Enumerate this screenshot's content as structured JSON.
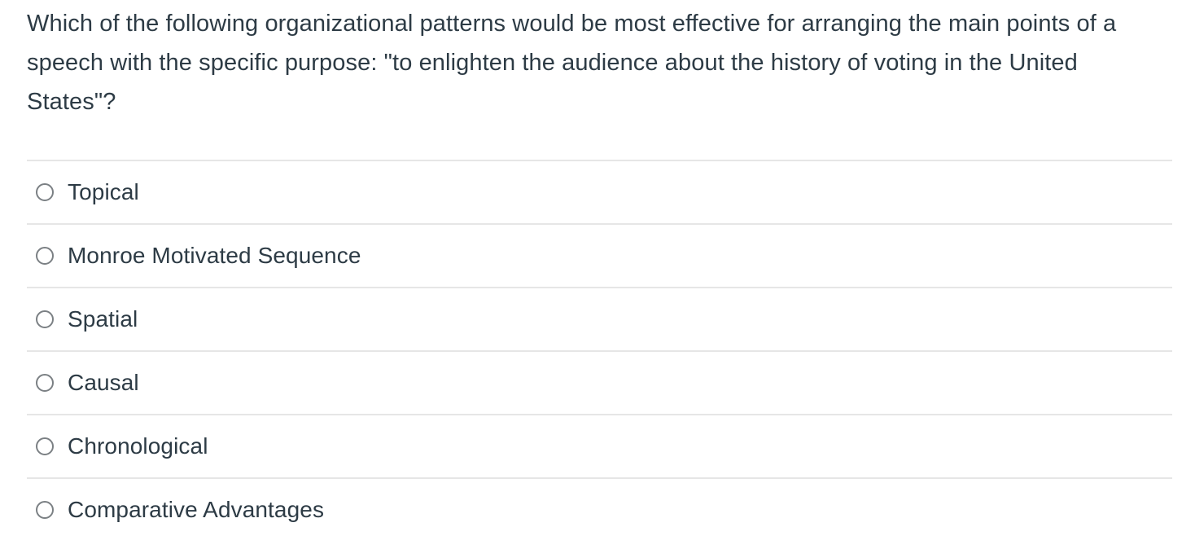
{
  "question": {
    "text": "Which of the following organizational patterns would be most effective for arranging the main points of a speech with the specific purpose: \"to enlighten the audience about the history of voting in the United States\"?"
  },
  "answers": [
    {
      "label": "Topical",
      "selected": false
    },
    {
      "label": "Monroe Motivated Sequence",
      "selected": false
    },
    {
      "label": "Spatial",
      "selected": false
    },
    {
      "label": "Causal",
      "selected": false
    },
    {
      "label": "Chronological",
      "selected": false
    },
    {
      "label": "Comparative Advantages",
      "selected": false
    }
  ],
  "colors": {
    "text": "#2d3b45",
    "divider": "#e6e6e6",
    "radio_border": "#7b8084",
    "background": "#ffffff"
  }
}
